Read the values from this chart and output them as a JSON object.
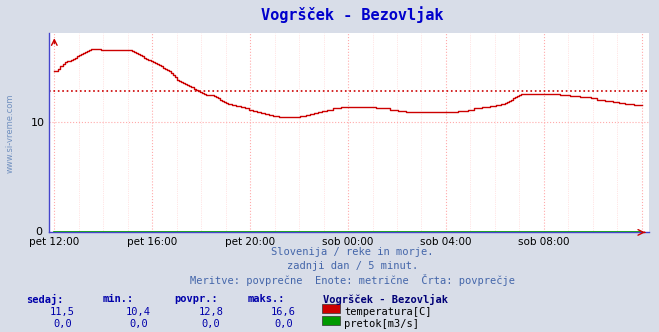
{
  "title": "Vogršček - Bezovljak",
  "title_color": "#0000cc",
  "background_color": "#d8dde8",
  "plot_bg_color": "#ffffff",
  "grid_color_major": "#ffaaaa",
  "grid_color_minor": "#ffcccc",
  "axis_color": "#4444cc",
  "x_labels": [
    "pet 12:00",
    "pet 16:00",
    "pet 20:00",
    "sob 00:00",
    "sob 04:00",
    "sob 08:00"
  ],
  "x_tick_positions": [
    0,
    4,
    8,
    12,
    16,
    20
  ],
  "total_hours": 24,
  "y_range": [
    0,
    18
  ],
  "y_ticks": [
    10
  ],
  "avg_line_value": 12.8,
  "avg_line_color": "#cc0000",
  "temp_line_color": "#cc0000",
  "flow_line_color": "#009900",
  "watermark": "www.si-vreme.com",
  "subtitle1": "Slovenija / reke in morje.",
  "subtitle2": "zadnji dan / 5 minut.",
  "subtitle3": "Meritve: povprečne  Enote: metrične  Črta: povprečje",
  "subtitle_color": "#4466aa",
  "legend_title": "Vogršček - Bezovljak",
  "legend_title_color": "#000077",
  "legend_items": [
    "temperatura[C]",
    "pretok[m3/s]"
  ],
  "legend_colors": [
    "#cc0000",
    "#009900"
  ],
  "stats_headers": [
    "sedaj:",
    "min.:",
    "povpr.:",
    "maks.:"
  ],
  "stats_color": "#0000aa",
  "stats_values_temp": [
    "11,5",
    "10,4",
    "12,8",
    "16,6"
  ],
  "stats_values_flow": [
    "0,0",
    "0,0",
    "0,0",
    "0,0"
  ],
  "temp_data_y": [
    14.6,
    14.6,
    14.8,
    15.0,
    15.2,
    15.4,
    15.5,
    15.5,
    15.6,
    15.7,
    15.8,
    15.9,
    16.0,
    16.1,
    16.2,
    16.3,
    16.4,
    16.5,
    16.6,
    16.6,
    16.6,
    16.6,
    16.6,
    16.5,
    16.5,
    16.5,
    16.5,
    16.5,
    16.5,
    16.5,
    16.5,
    16.5,
    16.5,
    16.5,
    16.5,
    16.5,
    16.5,
    16.5,
    16.4,
    16.3,
    16.2,
    16.1,
    16.0,
    15.9,
    15.8,
    15.7,
    15.6,
    15.5,
    15.4,
    15.3,
    15.2,
    15.1,
    15.0,
    14.9,
    14.8,
    14.7,
    14.6,
    14.4,
    14.2,
    14.0,
    13.8,
    13.7,
    13.6,
    13.5,
    13.4,
    13.3,
    13.2,
    13.1,
    13.0,
    12.9,
    12.8,
    12.7,
    12.6,
    12.5,
    12.4,
    12.4,
    12.4,
    12.4,
    12.3,
    12.2,
    12.1,
    12.0,
    11.9,
    11.8,
    11.7,
    11.6,
    11.6,
    11.5,
    11.5,
    11.4,
    11.4,
    11.3,
    11.3,
    11.2,
    11.2,
    11.1,
    11.1,
    11.0,
    11.0,
    10.9,
    10.9,
    10.8,
    10.8,
    10.7,
    10.7,
    10.6,
    10.6,
    10.5,
    10.5,
    10.5,
    10.4,
    10.4,
    10.4,
    10.4,
    10.4,
    10.4,
    10.4,
    10.4,
    10.4,
    10.4,
    10.5,
    10.5,
    10.5,
    10.6,
    10.6,
    10.7,
    10.7,
    10.8,
    10.8,
    10.9,
    10.9,
    11.0,
    11.0,
    11.1,
    11.1,
    11.1,
    11.2,
    11.2,
    11.2,
    11.2,
    11.3,
    11.3,
    11.3,
    11.3,
    11.3,
    11.3,
    11.3,
    11.3,
    11.3,
    11.3,
    11.3,
    11.3,
    11.3,
    11.3,
    11.3,
    11.3,
    11.3,
    11.2,
    11.2,
    11.2,
    11.2,
    11.2,
    11.2,
    11.2,
    11.1,
    11.1,
    11.1,
    11.1,
    11.0,
    11.0,
    11.0,
    11.0,
    10.9,
    10.9,
    10.9,
    10.9,
    10.9,
    10.9,
    10.9,
    10.9,
    10.9,
    10.9,
    10.9,
    10.9,
    10.9,
    10.9,
    10.9,
    10.9,
    10.9,
    10.9,
    10.9,
    10.9,
    10.9,
    10.9,
    10.9,
    10.9,
    10.9,
    11.0,
    11.0,
    11.0,
    11.0,
    11.0,
    11.1,
    11.1,
    11.1,
    11.2,
    11.2,
    11.2,
    11.2,
    11.3,
    11.3,
    11.3,
    11.3,
    11.4,
    11.4,
    11.4,
    11.5,
    11.5,
    11.6,
    11.6,
    11.7,
    11.8,
    11.9,
    12.0,
    12.1,
    12.2,
    12.3,
    12.4,
    12.5,
    12.5,
    12.5,
    12.5,
    12.5,
    12.5,
    12.5,
    12.5,
    12.5,
    12.5,
    12.5,
    12.5,
    12.5,
    12.5,
    12.5,
    12.5,
    12.5,
    12.5,
    12.5,
    12.4,
    12.4,
    12.4,
    12.4,
    12.4,
    12.3,
    12.3,
    12.3,
    12.3,
    12.3,
    12.2,
    12.2,
    12.2,
    12.2,
    12.2,
    12.1,
    12.1,
    12.1,
    12.0,
    12.0,
    12.0,
    12.0,
    11.9,
    11.9,
    11.9,
    11.9,
    11.8,
    11.8,
    11.8,
    11.7,
    11.7,
    11.7,
    11.6,
    11.6,
    11.6,
    11.6,
    11.5,
    11.5,
    11.5,
    11.5,
    11.5
  ]
}
